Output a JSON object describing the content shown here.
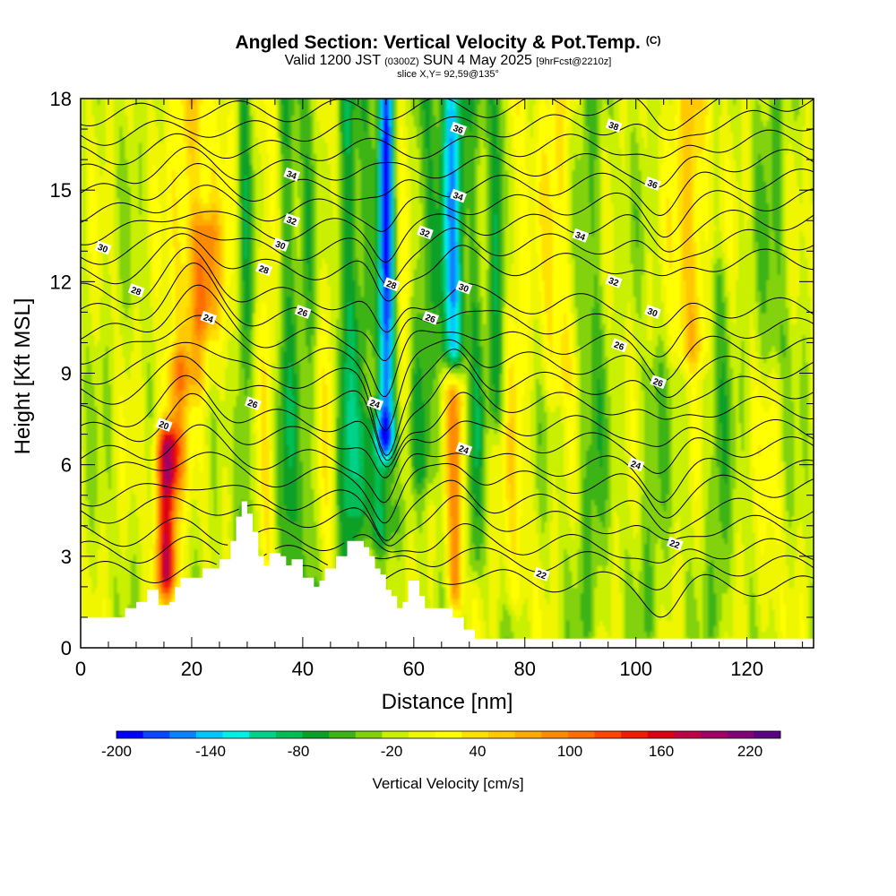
{
  "title": {
    "main": "Angled Section: Vertical Velocity & Pot.Temp.",
    "unit_tag": "(C)",
    "valid_prefix": "Valid 1200 JST",
    "valid_zulu": "(0300Z)",
    "valid_date": "SUN 4 May 2025",
    "fcst": "[9hrFcst@2210z]",
    "slice": "slice X,Y= 92,59@135°"
  },
  "chart_data": {
    "type": "heatmap",
    "title": "Angled Section: Vertical Velocity & Pot.Temp.",
    "xlabel": "Distance [nm]",
    "ylabel": "Height [Kft MSL]",
    "xlim": [
      0,
      132
    ],
    "ylim": [
      0,
      18
    ],
    "x_ticks": [
      0,
      20,
      40,
      60,
      80,
      100,
      120
    ],
    "y_ticks": [
      0,
      3,
      6,
      9,
      12,
      15,
      18
    ],
    "colorbar": {
      "title": "Vertical Velocity [cm/s]",
      "ticks": [
        "-200",
        "-140",
        "-80",
        "-20",
        "40",
        "100",
        "160",
        "220"
      ],
      "colors": [
        "#0000ff",
        "#0a46ff",
        "#0a82ff",
        "#00c8ff",
        "#00f0e6",
        "#00d28c",
        "#00be55",
        "#0aa028",
        "#3cb414",
        "#82d20a",
        "#c8f000",
        "#f0f500",
        "#ffff00",
        "#ffe100",
        "#ffc800",
        "#ffaa00",
        "#ff8c00",
        "#ff6e00",
        "#ff4600",
        "#f01e00",
        "#dc0014",
        "#be0046",
        "#a00064",
        "#820078",
        "#5a0082"
      ]
    },
    "velocity_field": {
      "description_units": "cm/s",
      "background": -5,
      "features": [
        {
          "x": 15.5,
          "w": 2.0,
          "y0": 2.5,
          "y1": 6.5,
          "v": 200
        },
        {
          "x": 17.0,
          "w": 2.5,
          "y0": 6.0,
          "y1": 9.0,
          "v": 80
        },
        {
          "x": 20.0,
          "w": 3.5,
          "y0": 9.0,
          "y1": 18.0,
          "v": 70
        },
        {
          "x": 22.5,
          "w": 2.5,
          "y0": 11.0,
          "y1": 13.5,
          "v": 90
        },
        {
          "x": 27.0,
          "w": 2.5,
          "y0": 5.0,
          "y1": 18.0,
          "v": 20
        },
        {
          "x": 29.5,
          "w": 1.5,
          "y0": 2.0,
          "y1": 18.0,
          "v": -60
        },
        {
          "x": 34.0,
          "w": 2.0,
          "y0": 3.0,
          "y1": 18.0,
          "v": 40
        },
        {
          "x": 37.0,
          "w": 2.0,
          "y0": 2.0,
          "y1": 18.0,
          "v": -60
        },
        {
          "x": 41.0,
          "w": 2.0,
          "y0": 2.0,
          "y1": 18.0,
          "v": -40
        },
        {
          "x": 44.5,
          "w": 2.5,
          "y0": 3.0,
          "y1": 18.0,
          "v": 30
        },
        {
          "x": 48.0,
          "w": 2.0,
          "y0": 2.0,
          "y1": 18.0,
          "v": -80
        },
        {
          "x": 51.0,
          "w": 1.5,
          "y0": 5.0,
          "y1": 18.0,
          "v": -40
        },
        {
          "x": 55.0,
          "w": 1.5,
          "y0": 7.0,
          "y1": 18.0,
          "v": -190
        },
        {
          "x": 54.0,
          "w": 3.0,
          "y0": 4.0,
          "y1": 7.0,
          "v": -80
        },
        {
          "x": 58.0,
          "w": 1.5,
          "y0": 6.0,
          "y1": 18.0,
          "v": 30
        },
        {
          "x": 62.0,
          "w": 2.5,
          "y0": 6.0,
          "y1": 18.0,
          "v": -50
        },
        {
          "x": 67.0,
          "w": 2.0,
          "y0": 10.0,
          "y1": 18.0,
          "v": -140
        },
        {
          "x": 67.5,
          "w": 1.5,
          "y0": 2.0,
          "y1": 8.0,
          "v": 110
        },
        {
          "x": 71.0,
          "w": 1.5,
          "y0": 3.0,
          "y1": 18.0,
          "v": -50
        },
        {
          "x": 75.0,
          "w": 1.8,
          "y0": 8.0,
          "y1": 18.0,
          "v": -70
        },
        {
          "x": 78.0,
          "w": 2.5,
          "y0": 2.0,
          "y1": 18.0,
          "v": 40
        },
        {
          "x": 86.0,
          "w": 3.0,
          "y0": 9.0,
          "y1": 18.0,
          "v": 50
        },
        {
          "x": 92.0,
          "w": 2.5,
          "y0": 1.0,
          "y1": 18.0,
          "v": -40
        },
        {
          "x": 103.0,
          "w": 2.5,
          "y0": 1.0,
          "y1": 9.0,
          "v": -30
        },
        {
          "x": 110.0,
          "w": 3.0,
          "y0": 10.0,
          "y1": 18.0,
          "v": 80
        },
        {
          "x": 115.0,
          "w": 2.0,
          "y0": 1.0,
          "y1": 12.0,
          "v": -40
        },
        {
          "x": 124.0,
          "w": 2.0,
          "y0": 1.0,
          "y1": 7.0,
          "v": 30
        },
        {
          "x": 125.0,
          "w": 3.0,
          "y0": 10.0,
          "y1": 18.0,
          "v": -30
        }
      ]
    },
    "terrain": {
      "x": [
        0,
        5,
        8,
        10,
        12,
        13,
        14,
        15,
        16,
        17,
        18,
        22,
        25,
        27,
        28,
        29,
        30,
        31,
        32,
        33,
        34,
        35,
        36,
        37,
        38,
        40,
        42,
        43,
        44,
        46,
        48,
        50,
        51,
        52,
        53,
        54,
        55,
        56,
        57,
        58,
        59,
        60,
        61,
        62,
        63,
        65,
        67,
        69,
        71,
        72,
        73,
        74,
        75,
        132
      ],
      "y": [
        1.0,
        1.0,
        1.3,
        1.5,
        1.9,
        1.9,
        1.4,
        1.4,
        1.5,
        2.0,
        2.3,
        2.6,
        2.9,
        3.5,
        4.3,
        4.8,
        4.4,
        3.8,
        3.0,
        2.7,
        3.1,
        3.1,
        3.0,
        2.7,
        2.9,
        2.3,
        2.0,
        2.2,
        2.6,
        3.0,
        3.5,
        3.5,
        3.3,
        3.0,
        2.6,
        2.4,
        1.9,
        1.7,
        1.3,
        1.5,
        2.2,
        2.2,
        1.7,
        1.3,
        1.3,
        1.3,
        1.0,
        0.6,
        0.3,
        0.3,
        0.3,
        0.3,
        0.3,
        0.3
      ]
    },
    "theta_contours": [
      {
        "label": "20",
        "base": 3.7,
        "label_at": [
          15,
          7.3
        ]
      },
      {
        "label": "22",
        "base": 5.0,
        "label_at": [
          107,
          3.4
        ]
      },
      {
        "label": "22",
        "base": 5.0,
        "label_at": [
          83,
          2.4
        ]
      },
      {
        "label": "24",
        "base": 6.3,
        "label_at": [
          23,
          10.8
        ]
      },
      {
        "label": "24",
        "base": 6.3,
        "label_at": [
          100,
          6.0
        ]
      },
      {
        "label": "24",
        "base": 6.3,
        "label_at": [
          69,
          6.5
        ]
      },
      {
        "label": "24",
        "base": 6.3,
        "label_at": [
          53,
          8.0
        ]
      },
      {
        "label": "26",
        "base": 7.6,
        "label_at": [
          40,
          11.0
        ]
      },
      {
        "label": "26",
        "base": 7.6,
        "label_at": [
          104,
          8.7
        ]
      },
      {
        "label": "26",
        "base": 7.6,
        "label_at": [
          31,
          8.0
        ]
      },
      {
        "label": "26",
        "base": 7.6,
        "label_at": [
          63,
          10.8
        ]
      },
      {
        "label": "26",
        "base": 7.6,
        "label_at": [
          97,
          9.9
        ]
      },
      {
        "label": "28",
        "base": 9.0,
        "label_at": [
          10,
          11.7
        ]
      },
      {
        "label": "28",
        "base": 9.0,
        "label_at": [
          33,
          12.4
        ]
      },
      {
        "label": "28",
        "base": 9.0,
        "label_at": [
          56,
          11.9
        ]
      },
      {
        "label": "30",
        "base": 10.3,
        "label_at": [
          4,
          13.1
        ]
      },
      {
        "label": "30",
        "base": 10.3,
        "label_at": [
          36,
          13.2
        ]
      },
      {
        "label": "30",
        "base": 10.3,
        "label_at": [
          69,
          11.8
        ]
      },
      {
        "label": "30",
        "base": 10.3,
        "label_at": [
          103,
          11.0
        ]
      },
      {
        "label": "32",
        "base": 11.6,
        "label_at": [
          38,
          14.0
        ]
      },
      {
        "label": "32",
        "base": 11.6,
        "label_at": [
          62,
          13.6
        ]
      },
      {
        "label": "32",
        "base": 11.6,
        "label_at": [
          96,
          12.0
        ]
      },
      {
        "label": "34",
        "base": 12.9,
        "label_at": [
          38,
          15.5
        ]
      },
      {
        "label": "34",
        "base": 12.9,
        "label_at": [
          68,
          14.8
        ]
      },
      {
        "label": "34",
        "base": 12.9,
        "label_at": [
          90,
          13.5
        ]
      },
      {
        "label": "36",
        "base": 14.2,
        "label_at": [
          68,
          17.0
        ]
      },
      {
        "label": "36",
        "base": 14.2,
        "label_at": [
          103,
          15.2
        ]
      },
      {
        "label": "38",
        "base": 15.5,
        "label_at": [
          96,
          17.1
        ]
      }
    ]
  }
}
